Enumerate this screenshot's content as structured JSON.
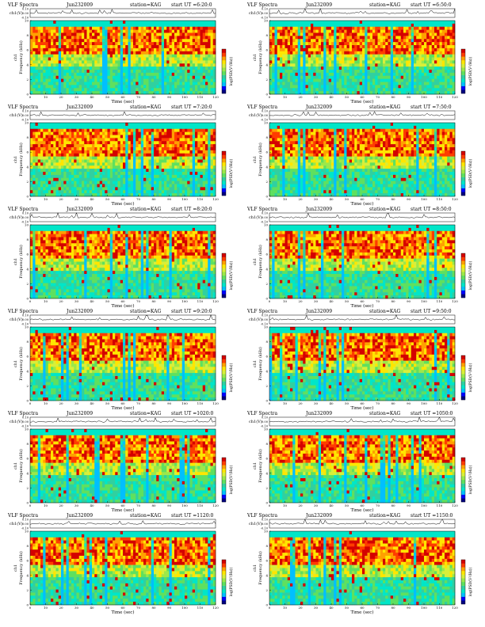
{
  "chart_data": [
    {
      "type": "heatmap",
      "title": "VLF Spectra",
      "date": "Jun232009",
      "station": "station=KAG",
      "start": "start UT =6:20:0",
      "ylabel_top": "ch1(V)",
      "ylabel": "Frequency (kHz)",
      "ylabel_prefix": "ch1",
      "xlabel": "Time (sec)",
      "colorbar_label": "log(PSD(V²/Hz))",
      "xlim": [
        0,
        120
      ],
      "ylim": [
        0,
        10
      ],
      "vlim": [
        -0.1,
        0.1
      ],
      "x_ticks": [
        "0",
        "10",
        "20",
        "30",
        "40",
        "50",
        "60",
        "70",
        "80",
        "90",
        "100",
        "110",
        "120"
      ],
      "y_ticks": [
        "0",
        "2",
        "4",
        "6",
        "8",
        "10"
      ],
      "v_ticks": [
        "0.10",
        "0.00",
        "-0.10"
      ]
    },
    {
      "type": "heatmap",
      "title": "VLF Spectra",
      "date": "Jun232009",
      "station": "station=KAG",
      "start": "start UT =6:50:0",
      "ylabel_top": "ch1(V)",
      "ylabel": "Frequency (kHz)",
      "ylabel_prefix": "ch1",
      "xlabel": "Time (sec)",
      "colorbar_label": "log(PSD(V²/Hz))",
      "xlim": [
        0,
        120
      ],
      "ylim": [
        0,
        10
      ],
      "vlim": [
        -0.1,
        0.1
      ],
      "x_ticks": [
        "0",
        "10",
        "20",
        "30",
        "40",
        "50",
        "60",
        "70",
        "80",
        "90",
        "100",
        "110",
        "120"
      ],
      "y_ticks": [
        "0",
        "2",
        "4",
        "6",
        "8",
        "10"
      ],
      "v_ticks": [
        "0.10",
        "0.00",
        "-0.10"
      ]
    },
    {
      "type": "heatmap",
      "title": "VLF Spectra",
      "date": "Jun232009",
      "station": "station=KAG",
      "start": "start UT =7:20:0",
      "ylabel_top": "ch1(V)",
      "ylabel": "Frequency (kHz)",
      "ylabel_prefix": "ch1",
      "xlabel": "Time (sec)",
      "colorbar_label": "log(PSD(V²/Hz))",
      "xlim": [
        0,
        120
      ],
      "ylim": [
        0,
        10
      ],
      "vlim": [
        -0.1,
        0.1
      ],
      "x_ticks": [
        "0",
        "10",
        "20",
        "30",
        "40",
        "50",
        "60",
        "70",
        "80",
        "90",
        "100",
        "110",
        "120"
      ],
      "y_ticks": [
        "0",
        "2",
        "4",
        "6",
        "8",
        "10"
      ],
      "v_ticks": [
        "0.10",
        "0.00",
        "-0.10"
      ]
    },
    {
      "type": "heatmap",
      "title": "VLF Spectra",
      "date": "Jun232009",
      "station": "station=KAG",
      "start": "start UT =7:50:0",
      "ylabel_top": "ch1(V)",
      "ylabel": "Frequency (kHz)",
      "ylabel_prefix": "ch1",
      "xlabel": "Time (sec)",
      "colorbar_label": "log(PSD(V²/Hz))",
      "xlim": [
        0,
        120
      ],
      "ylim": [
        0,
        10
      ],
      "vlim": [
        -0.1,
        0.1
      ],
      "x_ticks": [
        "0",
        "10",
        "20",
        "30",
        "40",
        "50",
        "60",
        "70",
        "80",
        "90",
        "100",
        "110",
        "120"
      ],
      "y_ticks": [
        "0",
        "2",
        "4",
        "6",
        "8",
        "10"
      ],
      "v_ticks": [
        "0.10",
        "0.00",
        "-0.10"
      ]
    },
    {
      "type": "heatmap",
      "title": "VLF Spectra",
      "date": "Jun232009",
      "station": "station=KAG",
      "start": "start UT =8:20:0",
      "ylabel_top": "ch1(V)",
      "ylabel": "Frequency (kHz)",
      "ylabel_prefix": "ch1",
      "xlabel": "Time (sec)",
      "colorbar_label": "log(PSD(V²/Hz))",
      "xlim": [
        0,
        120
      ],
      "ylim": [
        0,
        10
      ],
      "vlim": [
        -0.1,
        0.1
      ],
      "x_ticks": [
        "0",
        "10",
        "20",
        "30",
        "40",
        "50",
        "60",
        "70",
        "80",
        "90",
        "100",
        "110",
        "120"
      ],
      "y_ticks": [
        "0",
        "2",
        "4",
        "6",
        "8",
        "10"
      ],
      "v_ticks": [
        "0.10",
        "0.00",
        "-0.10"
      ]
    },
    {
      "type": "heatmap",
      "title": "VLF Spectra",
      "date": "Jun232009",
      "station": "station=KAG",
      "start": "start UT =8:50:0",
      "ylabel_top": "ch1(V)",
      "ylabel": "Frequency (kHz)",
      "ylabel_prefix": "ch1",
      "xlabel": "Time (sec)",
      "colorbar_label": "log(PSD(V²/Hz))",
      "xlim": [
        0,
        120
      ],
      "ylim": [
        0,
        10
      ],
      "vlim": [
        -0.1,
        0.1
      ],
      "x_ticks": [
        "0",
        "10",
        "20",
        "30",
        "40",
        "50",
        "60",
        "70",
        "80",
        "90",
        "100",
        "110",
        "120"
      ],
      "y_ticks": [
        "0",
        "2",
        "4",
        "6",
        "8",
        "10"
      ],
      "v_ticks": [
        "0.10",
        "0.00",
        "-0.10"
      ]
    },
    {
      "type": "heatmap",
      "title": "VLF Spectra",
      "date": "Jun232009",
      "station": "station=KAG",
      "start": "start UT =9:20:0",
      "ylabel_top": "ch1(V)",
      "ylabel": "Frequency (kHz)",
      "ylabel_prefix": "ch1",
      "xlabel": "Time (sec)",
      "colorbar_label": "log(PSD(V²/Hz))",
      "xlim": [
        0,
        120
      ],
      "ylim": [
        0,
        10
      ],
      "vlim": [
        -0.1,
        0.1
      ],
      "x_ticks": [
        "0",
        "10",
        "20",
        "30",
        "40",
        "50",
        "60",
        "70",
        "80",
        "90",
        "100",
        "110",
        "120"
      ],
      "y_ticks": [
        "0",
        "2",
        "4",
        "6",
        "8",
        "10"
      ],
      "v_ticks": [
        "0.10",
        "0.00",
        "-0.10"
      ]
    },
    {
      "type": "heatmap",
      "title": "VLF Spectra",
      "date": "Jun232009",
      "station": "station=KAG",
      "start": "start UT =9:50:0",
      "ylabel_top": "ch1(V)",
      "ylabel": "Frequency (kHz)",
      "ylabel_prefix": "ch1",
      "xlabel": "Time (sec)",
      "colorbar_label": "log(PSD(V²/Hz))",
      "xlim": [
        0,
        120
      ],
      "ylim": [
        0,
        10
      ],
      "vlim": [
        -0.1,
        0.1
      ],
      "x_ticks": [
        "0",
        "10",
        "20",
        "30",
        "40",
        "50",
        "60",
        "70",
        "80",
        "90",
        "100",
        "110",
        "120"
      ],
      "y_ticks": [
        "0",
        "2",
        "4",
        "6",
        "8",
        "10"
      ],
      "v_ticks": [
        "0.10",
        "0.00",
        "-0.10"
      ]
    },
    {
      "type": "heatmap",
      "title": "VLF Spectra",
      "date": "Jun232009",
      "station": "station=KAG",
      "start": "start UT =1020:0",
      "ylabel_top": "ch1(V)",
      "ylabel": "Frequency (kHz)",
      "ylabel_prefix": "ch1",
      "xlabel": "Time (sec)",
      "colorbar_label": "log(PSD(V²/Hz))",
      "xlim": [
        0,
        120
      ],
      "ylim": [
        0,
        10
      ],
      "vlim": [
        -0.1,
        0.1
      ],
      "x_ticks": [
        "0",
        "10",
        "20",
        "30",
        "40",
        "50",
        "60",
        "70",
        "80",
        "90",
        "100",
        "110",
        "120"
      ],
      "y_ticks": [
        "0",
        "2",
        "4",
        "6",
        "8",
        "10"
      ],
      "v_ticks": [
        "0.10",
        "0.00",
        "-0.10"
      ]
    },
    {
      "type": "heatmap",
      "title": "VLF Spectra",
      "date": "Jun232009",
      "station": "station=KAG",
      "start": "start UT =1050:0",
      "ylabel_top": "ch1(V)",
      "ylabel": "Frequency (kHz)",
      "ylabel_prefix": "ch1",
      "xlabel": "Time (sec)",
      "colorbar_label": "log(PSD(V²/Hz))",
      "xlim": [
        0,
        120
      ],
      "ylim": [
        0,
        10
      ],
      "vlim": [
        -0.1,
        0.1
      ],
      "x_ticks": [
        "0",
        "10",
        "20",
        "30",
        "40",
        "50",
        "60",
        "70",
        "80",
        "90",
        "100",
        "110",
        "120"
      ],
      "y_ticks": [
        "0",
        "2",
        "4",
        "6",
        "8",
        "10"
      ],
      "v_ticks": [
        "0.10",
        "0.00",
        "-0.10"
      ]
    },
    {
      "type": "heatmap",
      "title": "VLF Spectra",
      "date": "Jun232009",
      "station": "station=KAG",
      "start": "start UT =1120:0",
      "ylabel_top": "ch1(V)",
      "ylabel": "Frequency (kHz)",
      "ylabel_prefix": "ch1",
      "xlabel": "Time (sec)",
      "colorbar_label": "log(PSD(V²/Hz))",
      "xlim": [
        0,
        120
      ],
      "ylim": [
        0,
        10
      ],
      "vlim": [
        -0.1,
        0.1
      ],
      "x_ticks": [
        "0",
        "10",
        "20",
        "30",
        "40",
        "50",
        "60",
        "70",
        "80",
        "90",
        "100",
        "110",
        "120"
      ],
      "y_ticks": [
        "0",
        "2",
        "4",
        "6",
        "8",
        "10"
      ],
      "v_ticks": [
        "0.10",
        "0.00",
        "-0.10"
      ]
    },
    {
      "type": "heatmap",
      "title": "VLF Spectra",
      "date": "Jun232009",
      "station": "station=KAG",
      "start": "start UT =1150:0",
      "ylabel_top": "ch1(V)",
      "ylabel": "Frequency (kHz)",
      "ylabel_prefix": "ch1",
      "xlabel": "Time (sec)",
      "colorbar_label": "log(PSD(V²/Hz))",
      "xlim": [
        0,
        120
      ],
      "ylim": [
        0,
        10
      ],
      "vlim": [
        -0.1,
        0.1
      ],
      "x_ticks": [
        "0",
        "10",
        "20",
        "30",
        "40",
        "50",
        "60",
        "70",
        "80",
        "90",
        "100",
        "110",
        "120"
      ],
      "y_ticks": [
        "0",
        "2",
        "4",
        "6",
        "8",
        "10"
      ],
      "v_ticks": [
        "0.10",
        "0.00",
        "-0.10"
      ]
    }
  ],
  "colors": {
    "colormap": [
      "#00007f",
      "#0000ff",
      "#00bfff",
      "#00e6c8",
      "#30d0a0",
      "#5fe05f",
      "#9ce84a",
      "#d8ef3a",
      "#ffe600",
      "#ffa000",
      "#ff3c00",
      "#d40000"
    ],
    "trace": "#000000",
    "band": "#2ad2c0"
  }
}
